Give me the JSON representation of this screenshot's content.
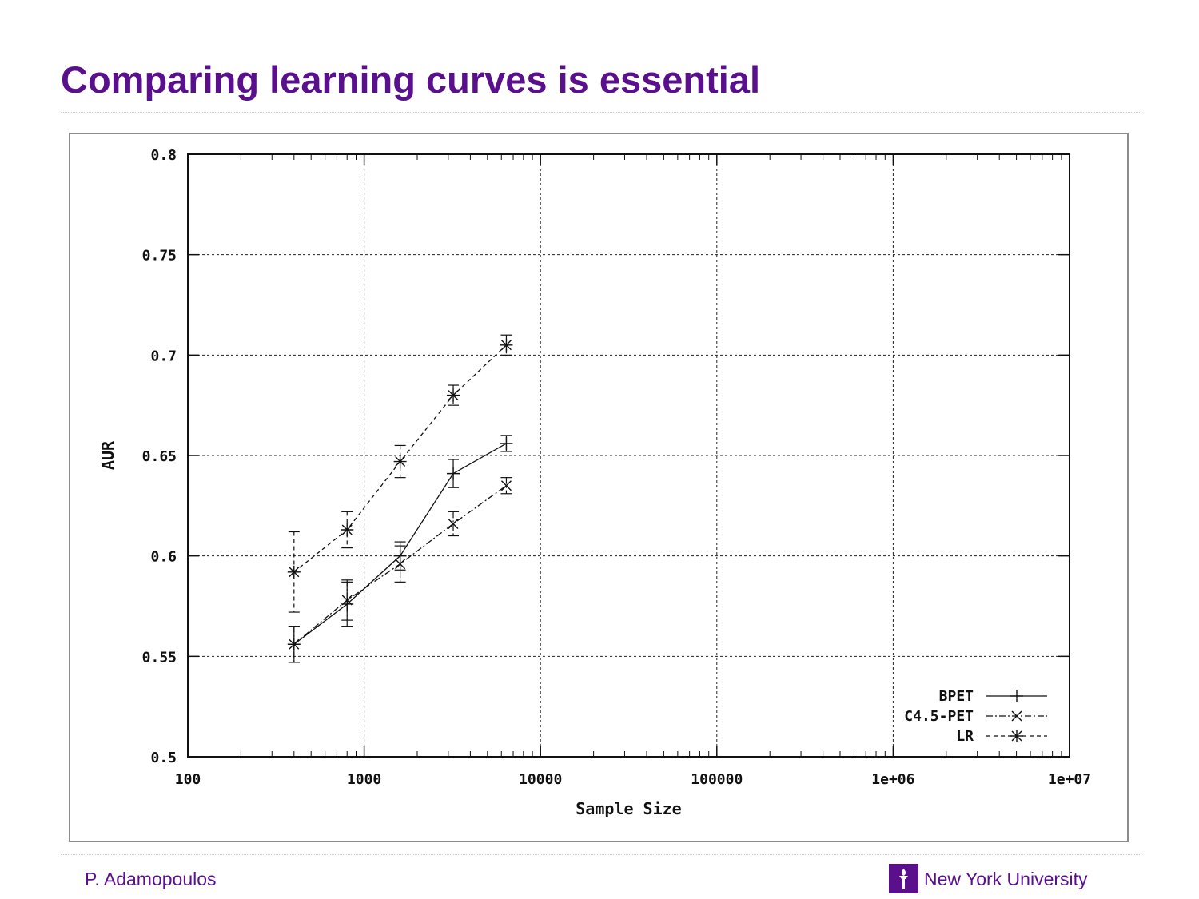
{
  "slide": {
    "title": "Comparing learning curves is essential",
    "author": "P. Adamopoulos",
    "organization": "New York University",
    "logo_icon": "nyu-torch-icon",
    "brand_color": "#5a0f8c"
  },
  "chart_data": {
    "type": "line",
    "title": "",
    "xlabel": "Sample Size",
    "ylabel": "AUR",
    "x_scale": "log",
    "xlim": [
      100,
      10000000
    ],
    "ylim": [
      0.5,
      0.8
    ],
    "x_ticks": [
      100,
      1000,
      10000,
      100000,
      1000000,
      10000000
    ],
    "x_tick_labels": [
      "100",
      "1000",
      "10000",
      "100000",
      "1e+06",
      "1e+07"
    ],
    "y_ticks": [
      0.5,
      0.55,
      0.6,
      0.65,
      0.7,
      0.75,
      0.8
    ],
    "y_tick_labels": [
      "0.5",
      "0.55",
      "0.6",
      "0.65",
      "0.7",
      "0.75",
      "0.8"
    ],
    "grid": true,
    "legend_position": "bottom-right",
    "series": [
      {
        "name": "BPET",
        "line_style": "solid",
        "marker": "plus",
        "x": [
          400,
          800,
          1600,
          3200,
          6400
        ],
        "y": [
          0.556,
          0.576,
          0.6,
          0.641,
          0.656
        ],
        "err": [
          0.009,
          0.011,
          0.007,
          0.007,
          0.004
        ]
      },
      {
        "name": "C4.5-PET",
        "line_style": "dash-dot",
        "marker": "x",
        "x": [
          400,
          800,
          1600,
          3200,
          6400
        ],
        "y": [
          0.556,
          0.578,
          0.596,
          0.616,
          0.635
        ],
        "err": [
          0.009,
          0.01,
          0.009,
          0.006,
          0.004
        ]
      },
      {
        "name": "LR",
        "line_style": "dashed",
        "marker": "star",
        "x": [
          400,
          800,
          1600,
          3200,
          6400
        ],
        "y": [
          0.592,
          0.613,
          0.647,
          0.68,
          0.705
        ],
        "err": [
          0.02,
          0.009,
          0.008,
          0.005,
          0.005
        ]
      }
    ]
  }
}
